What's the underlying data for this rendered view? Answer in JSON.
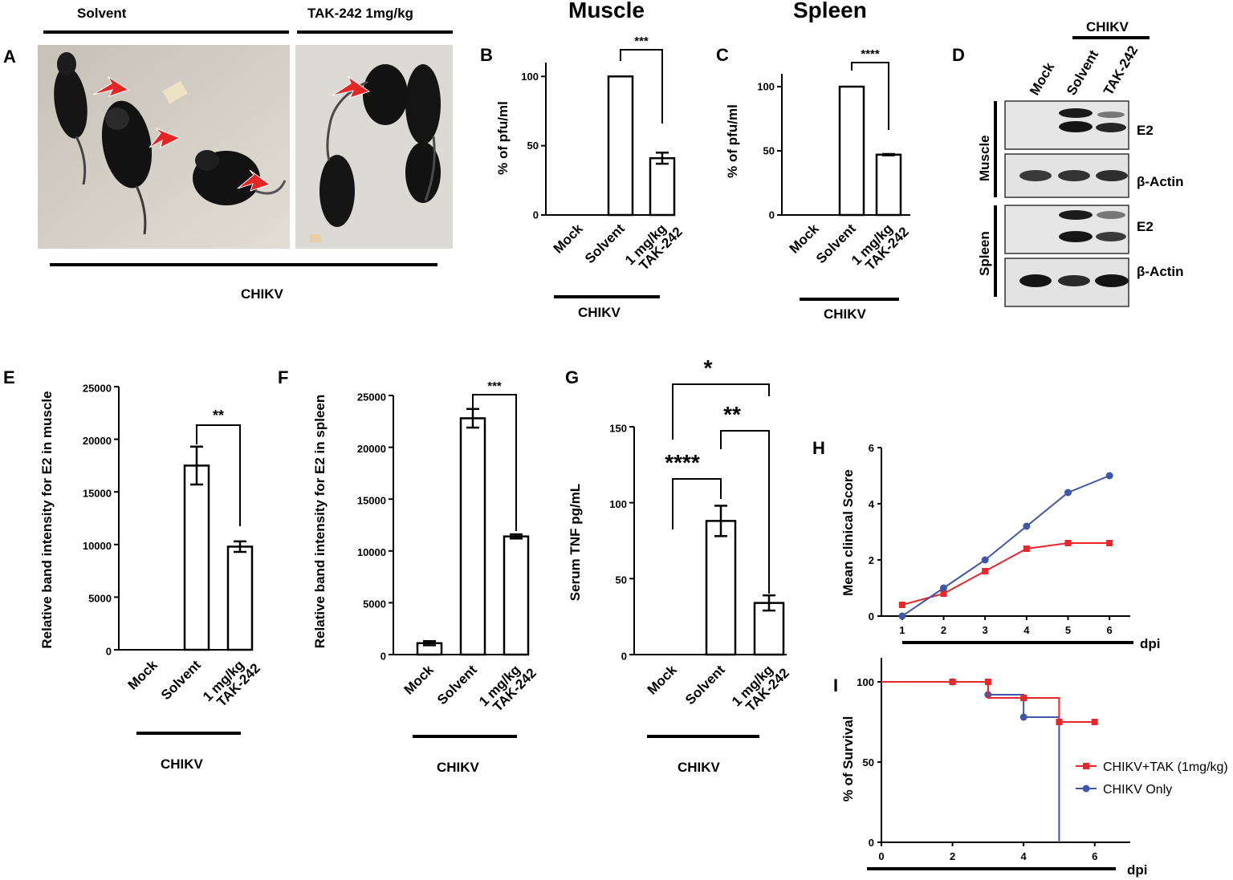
{
  "panels": {
    "A": {
      "letter": "A",
      "group_left": "Solvent",
      "group_right": "TAK-242 1mg/kg",
      "bottom_label": "CHIKV"
    },
    "B": {
      "letter": "B",
      "title": "Muscle"
    },
    "C": {
      "letter": "C",
      "title": "Spleen"
    },
    "D": {
      "letter": "D",
      "top_label": "CHIKV",
      "lanes": [
        "Mock",
        "Solvent",
        "TAK-242"
      ],
      "tissues": [
        "Muscle",
        "Spleen"
      ],
      "bands": [
        "E2",
        "β-Actin",
        "E2",
        "β-Actin"
      ]
    },
    "E": {
      "letter": "E"
    },
    "F": {
      "letter": "F"
    },
    "G": {
      "letter": "G"
    },
    "H": {
      "letter": "H"
    },
    "I": {
      "letter": "I"
    }
  },
  "chart_data": [
    {
      "id": "B",
      "type": "bar",
      "title": "Muscle",
      "categories": [
        "Mock",
        "Solvent",
        "1 mg/kg\nTAK-242"
      ],
      "values": [
        0,
        100,
        41
      ],
      "errors": [
        0,
        0,
        4
      ],
      "ylabel": "% of pfu/ml",
      "ylim": [
        0,
        110
      ],
      "yticks": [
        0,
        50,
        100
      ],
      "group_label": "CHIKV",
      "sig": [
        {
          "from": 1,
          "to": 2,
          "label": "***"
        }
      ]
    },
    {
      "id": "C",
      "type": "bar",
      "title": "Spleen",
      "categories": [
        "Mock",
        "Solvent",
        "1 mg/kg\nTAK-242"
      ],
      "values": [
        0,
        100,
        47
      ],
      "errors": [
        0,
        0,
        0.5
      ],
      "ylabel": "% of pfu/ml",
      "ylim": [
        0,
        110
      ],
      "yticks": [
        0,
        50,
        100
      ],
      "group_label": "CHIKV",
      "sig": [
        {
          "from": 1,
          "to": 2,
          "label": "****"
        }
      ]
    },
    {
      "id": "E",
      "type": "bar",
      "categories": [
        "Mock",
        "Solvent",
        "1 mg/kg\nTAK-242"
      ],
      "values": [
        0,
        17500,
        9800
      ],
      "errors": [
        0,
        1800,
        500
      ],
      "ylabel": "Relative band intensity for E2 in muscle",
      "ylim": [
        0,
        25000
      ],
      "yticks": [
        0,
        5000,
        10000,
        15000,
        20000,
        25000
      ],
      "group_label": "CHIKV",
      "sig": [
        {
          "from": 1,
          "to": 2,
          "label": "**"
        }
      ]
    },
    {
      "id": "F",
      "type": "bar",
      "categories": [
        "Mock",
        "Solvent",
        "1 mg/kg\nTAK-242"
      ],
      "values": [
        1100,
        22800,
        11400
      ],
      "errors": [
        200,
        900,
        200
      ],
      "ylabel": "Relative band intensity for E2 in spleen",
      "ylim": [
        0,
        25000
      ],
      "yticks": [
        0,
        5000,
        10000,
        15000,
        20000,
        25000
      ],
      "group_label": "CHIKV",
      "sig": [
        {
          "from": 1,
          "to": 2,
          "label": "***"
        }
      ]
    },
    {
      "id": "G",
      "type": "bar",
      "categories": [
        "Mock",
        "Solvent",
        "1 mg/kg\nTAK-242"
      ],
      "values": [
        0,
        88,
        34
      ],
      "errors": [
        0,
        10,
        5
      ],
      "ylabel": "Serum TNF pg/mL",
      "ylim": [
        0,
        150
      ],
      "yticks": [
        0,
        50,
        100,
        150
      ],
      "group_label": "CHIKV",
      "sig": [
        {
          "from": 0,
          "to": 1,
          "label": "****"
        },
        {
          "from": 1,
          "to": 2,
          "label": "**"
        },
        {
          "from": 0,
          "to": 2,
          "label": "*"
        }
      ]
    },
    {
      "id": "H",
      "type": "line",
      "ylabel": "Mean clinical Score",
      "xlabel": "dpi",
      "x": [
        1,
        2,
        3,
        4,
        5,
        6
      ],
      "xlim": [
        0.5,
        6.5
      ],
      "ylim": [
        0,
        6
      ],
      "yticks": [
        0,
        2,
        4,
        6
      ],
      "xticks": [
        1,
        2,
        3,
        4,
        5,
        6
      ],
      "series": [
        {
          "name": "CHIKV+TAK (1mg/kg)",
          "color": "#e8262b",
          "marker": "square",
          "values": [
            0.4,
            0.8,
            1.6,
            2.4,
            2.6,
            2.6
          ]
        },
        {
          "name": "CHIKV Only",
          "color": "#3f57a6",
          "marker": "circle",
          "values": [
            0,
            1.0,
            2.0,
            3.2,
            4.4,
            5.0
          ]
        }
      ]
    },
    {
      "id": "I",
      "type": "line",
      "ylabel": "% of Survival",
      "xlabel": "dpi",
      "xlim": [
        0,
        7
      ],
      "ylim": [
        0,
        115
      ],
      "yticks": [
        0,
        50,
        100
      ],
      "xticks": [
        0,
        2,
        4,
        6
      ],
      "series": [
        {
          "name": "CHIKV+TAK (1mg/kg)",
          "color": "#e8262b",
          "marker": "square",
          "steps": [
            [
              0,
              100
            ],
            [
              3,
              100
            ],
            [
              3,
              90
            ],
            [
              4,
              90
            ],
            [
              5,
              90
            ],
            [
              5,
              75
            ],
            [
              6,
              75
            ]
          ],
          "points": [
            [
              2,
              100
            ],
            [
              3,
              100
            ],
            [
              4,
              90
            ],
            [
              5,
              75
            ],
            [
              6,
              75
            ]
          ]
        },
        {
          "name": "CHIKV Only",
          "color": "#3f57a6",
          "marker": "circle",
          "steps": [
            [
              0,
              100
            ],
            [
              3,
              100
            ],
            [
              3,
              92
            ],
            [
              4,
              92
            ],
            [
              4,
              78
            ],
            [
              5,
              78
            ],
            [
              5,
              0
            ]
          ],
          "points": [
            [
              2,
              100
            ],
            [
              3,
              92
            ],
            [
              4,
              78
            ]
          ]
        }
      ],
      "legend": [
        "CHIKV+TAK (1mg/kg)",
        "CHIKV Only"
      ]
    }
  ]
}
